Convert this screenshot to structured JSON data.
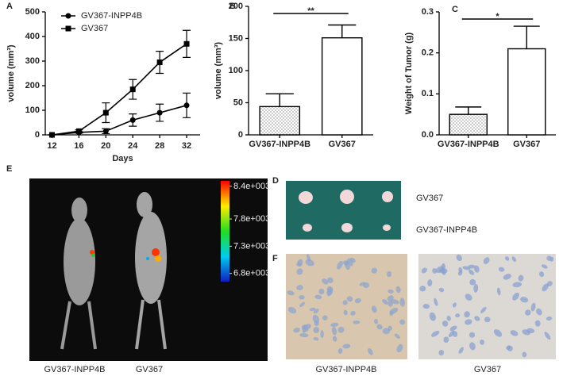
{
  "chart_data": [
    {
      "type": "line",
      "panel": "A",
      "xlabel": "Days",
      "ylabel": "volume (mm³)",
      "x": [
        12,
        16,
        20,
        24,
        28,
        32
      ],
      "xlim": [
        11,
        34
      ],
      "xticks": [
        12,
        16,
        20,
        24,
        28,
        32
      ],
      "ylim": [
        0,
        500
      ],
      "yticks": [
        0,
        100,
        200,
        300,
        400,
        500
      ],
      "series": [
        {
          "name": "GV367-INPP4B",
          "marker": "circle",
          "color": "#000000",
          "values": [
            0,
            10,
            15,
            60,
            90,
            120
          ],
          "errors": [
            0,
            3,
            10,
            25,
            35,
            50
          ]
        },
        {
          "name": "GV367",
          "marker": "square",
          "color": "#000000",
          "values": [
            0,
            15,
            90,
            185,
            295,
            370
          ],
          "errors": [
            0,
            5,
            40,
            40,
            45,
            55
          ]
        }
      ]
    },
    {
      "type": "bar",
      "panel": "B",
      "ylabel": "volume (mm³)",
      "annotation": "**",
      "categories": [
        "GV367-INPP4B",
        "GV367"
      ],
      "values": [
        44,
        151
      ],
      "errors": [
        20,
        20
      ],
      "ylim": [
        0,
        200
      ],
      "yticks": [
        0,
        50,
        100,
        150,
        200
      ]
    },
    {
      "type": "bar",
      "panel": "C",
      "ylabel": "Weight of Tumor (g)",
      "annotation": "*",
      "categories": [
        "GV367-INPP4B",
        "GV367"
      ],
      "values": [
        0.05,
        0.21
      ],
      "errors": [
        0.018,
        0.055
      ],
      "ylim": [
        0,
        0.3
      ],
      "yticks": [
        {
          "value": 0,
          "label": "0.0"
        },
        0.1,
        0.2,
        0.3
      ]
    }
  ],
  "figures": [
    {
      "panel": "E",
      "captions": [
        "GV367-INPP4B",
        "GV367"
      ],
      "colorbar_lim": [
        6650,
        8500
      ],
      "colorbar_ticks": [
        {
          "value": 8400,
          "label": "8.4e+003"
        },
        {
          "value": 7800,
          "label": "7.8e+003"
        },
        {
          "value": 7300,
          "label": "7.3e+003"
        },
        {
          "value": 6800,
          "label": "6.8e+003"
        }
      ]
    },
    {
      "panel": "D",
      "row_labels": [
        "GV367",
        "GV367-INPP4B"
      ]
    },
    {
      "panel": "F",
      "captions": [
        "GV367-INPP4B",
        "GV367"
      ]
    }
  ]
}
